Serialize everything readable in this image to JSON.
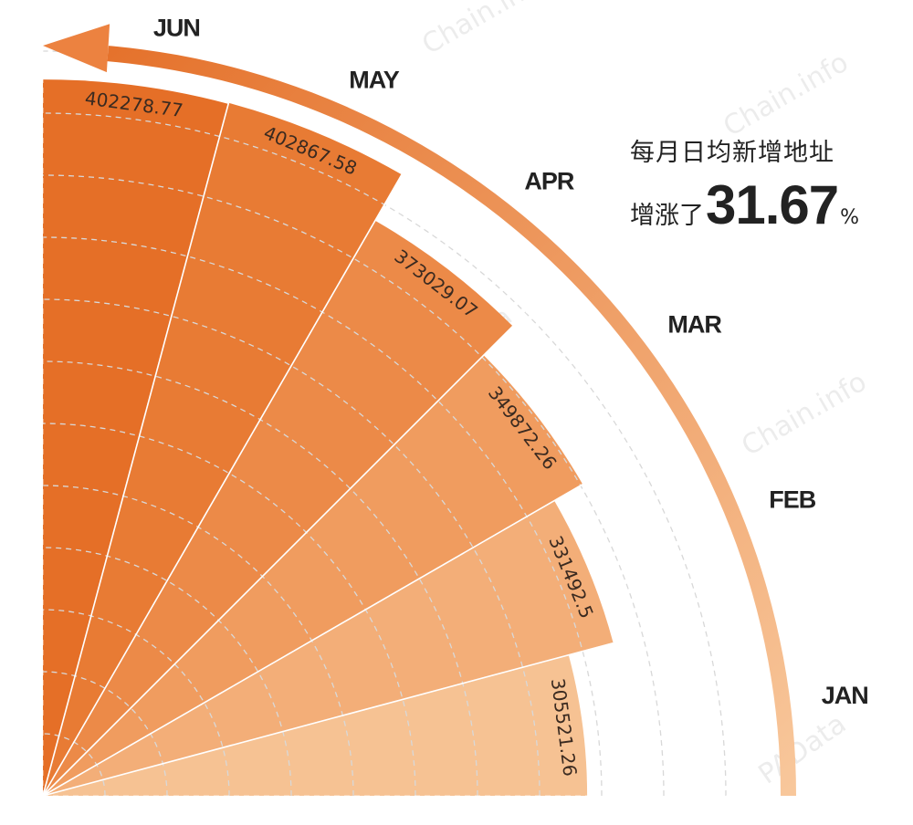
{
  "chart_data": {
    "type": "polar-bar",
    "categories": [
      "JAN",
      "FEB",
      "MAR",
      "APR",
      "MAY",
      "JUN"
    ],
    "values": [
      305521.26,
      331492.5,
      349872.26,
      373029.07,
      402867.58,
      402278.77
    ],
    "value_labels": [
      "305521.26",
      "331492.5",
      "349872.26",
      "373029.07",
      "402867.58",
      "402278.77"
    ],
    "colors": [
      "#f6c293",
      "#f3ae78",
      "#f09c5f",
      "#ec8a48",
      "#e87b34",
      "#e56f27"
    ],
    "arrow_color": "#ec8240",
    "grid": true
  },
  "headline": {
    "line1": "每月日均新增地址",
    "prefix": "增涨了",
    "percent": "31.67",
    "percent_sign": "%"
  },
  "watermarks": [
    "Chain.info",
    "PAData"
  ]
}
